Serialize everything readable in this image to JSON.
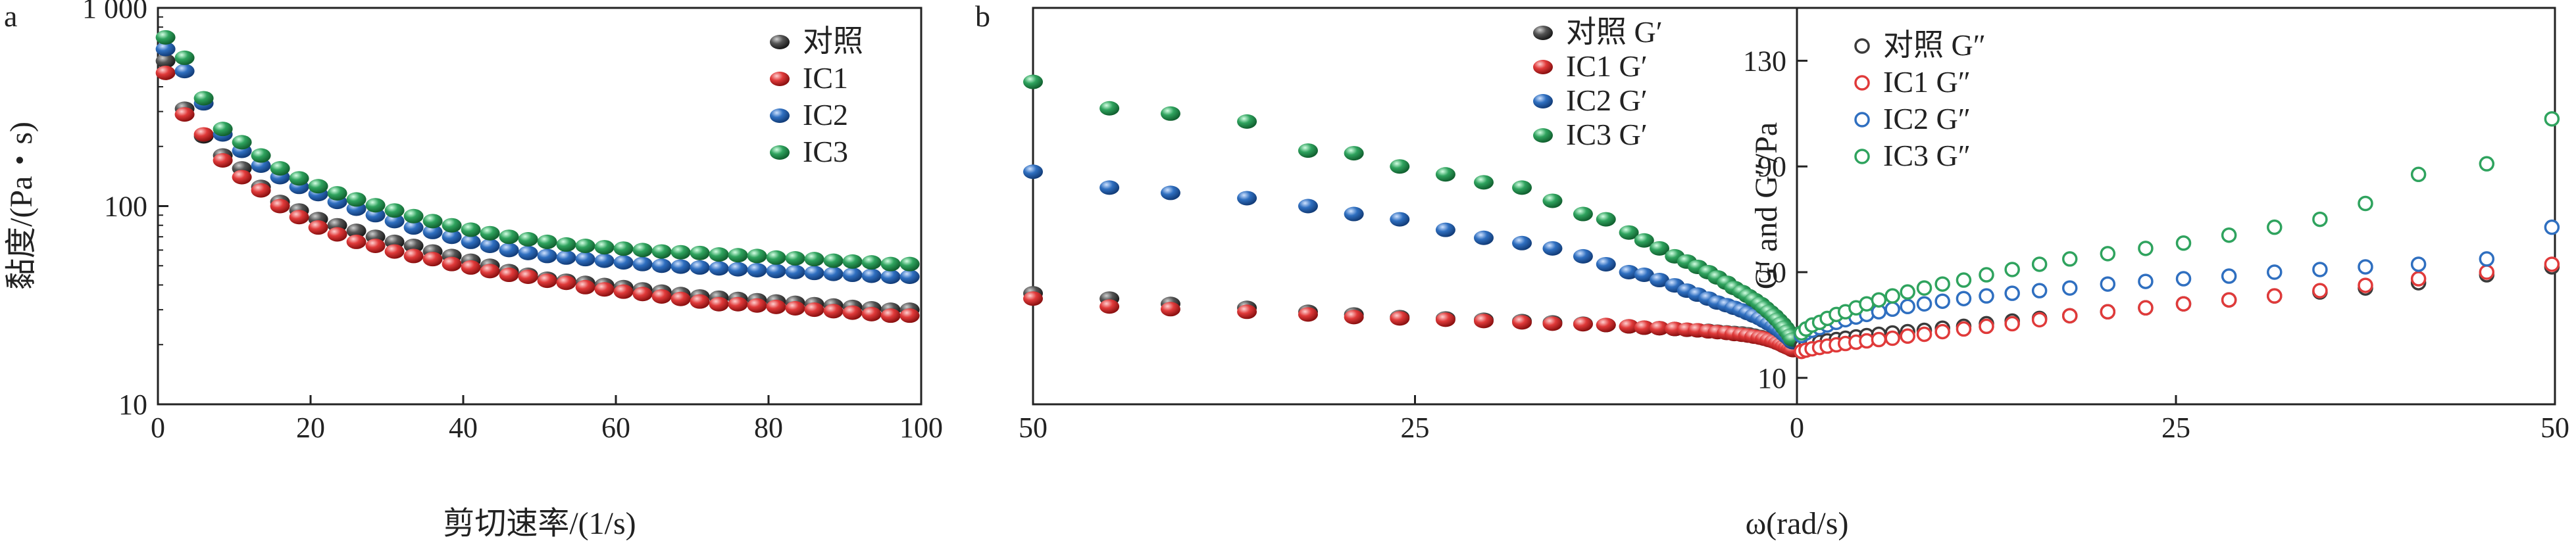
{
  "colors": {
    "control": "#3a3a3a",
    "IC1": "#e03a3a",
    "IC2": "#2f6fc0",
    "IC3": "#2fa35e"
  },
  "chart_data": [
    {
      "panel": "a",
      "type": "scatter",
      "xlabel": "剪切速率/(1/s)",
      "ylabel": "黏度/(Pa・s)",
      "xlim": [
        0,
        100
      ],
      "ylim": [
        10,
        1000
      ],
      "yscale": "log",
      "xticks": [
        0,
        20,
        40,
        60,
        80,
        100
      ],
      "yticks": [
        10,
        100,
        1000
      ],
      "ytick_labels": [
        "10",
        "100",
        "1 000"
      ],
      "legend": "top-right",
      "marker": "filled",
      "x": [
        1,
        3.5,
        6,
        8.5,
        11,
        13.5,
        16,
        18.5,
        21,
        23.5,
        26,
        28.5,
        31,
        33.5,
        36,
        38.5,
        41,
        43.5,
        46,
        48.5,
        51,
        53.5,
        56,
        58.5,
        61,
        63.5,
        66,
        68.5,
        71,
        73.5,
        76,
        78.5,
        81,
        83.5,
        86,
        88.5,
        91,
        93.5,
        96,
        98.5
      ],
      "series": [
        {
          "name": "对照",
          "color_key": "control",
          "values": [
            540,
            310,
            225,
            180,
            155,
            125,
            105,
            95,
            86,
            80,
            75,
            70,
            66,
            63,
            59,
            56,
            53,
            50,
            47,
            45,
            43,
            42,
            41,
            40,
            39,
            38,
            37,
            36,
            35,
            34.5,
            34,
            33.5,
            33,
            32.5,
            32,
            31.5,
            31,
            30.5,
            30,
            30
          ]
        },
        {
          "name": "IC1",
          "color_key": "IC1",
          "values": [
            470,
            290,
            230,
            170,
            140,
            120,
            100,
            88,
            78,
            72,
            66,
            63,
            59,
            56,
            54,
            51,
            49,
            47,
            45,
            44,
            42,
            41,
            39,
            38,
            37,
            36,
            35,
            34,
            33,
            32,
            32,
            31.5,
            31,
            30.5,
            30,
            29.5,
            29,
            28.5,
            28,
            28
          ]
        },
        {
          "name": "IC2",
          "color_key": "IC2",
          "values": [
            620,
            480,
            330,
            230,
            190,
            160,
            140,
            125,
            115,
            105,
            97,
            90,
            84,
            78,
            74,
            70,
            66,
            63,
            60,
            58,
            56,
            55,
            54,
            53,
            52,
            51,
            50,
            49.5,
            49,
            48.5,
            48,
            47.5,
            47,
            46.5,
            46,
            45.5,
            45,
            44.5,
            44,
            44
          ]
        },
        {
          "name": "IC3",
          "color_key": "IC3",
          "values": [
            710,
            560,
            350,
            245,
            210,
            180,
            155,
            138,
            126,
            116,
            108,
            101,
            95,
            89,
            84,
            80,
            76,
            73,
            70,
            68,
            66,
            64,
            63,
            62,
            61,
            60,
            59,
            58.5,
            58,
            57,
            56.5,
            56,
            55,
            54.5,
            54,
            53,
            52.5,
            52,
            51,
            51
          ]
        }
      ]
    },
    {
      "panel": "b",
      "type": "scatter",
      "xlabel": "ω(rad/s)",
      "ylabel": "G′ and G″/Pa",
      "xlim": [
        0,
        50
      ],
      "ylim": [
        0,
        150
      ],
      "xticks": [
        50,
        25,
        0,
        25,
        50
      ],
      "yticks": [
        10,
        50,
        90,
        130
      ],
      "note": "mirrored x-axis: G′ plotted to the left of ω=0, G″ to the right",
      "left": {
        "marker": "filled",
        "x": [
          50,
          45,
          41,
          36,
          32,
          29,
          26,
          23,
          20.5,
          18,
          16,
          14,
          12.5,
          11,
          10,
          9,
          8,
          7.2,
          6.5,
          5.8,
          5.2,
          4.6,
          4.1,
          3.6,
          3.2,
          2.8,
          2.4,
          2.1,
          1.8,
          1.5,
          1.25,
          1,
          0.8,
          0.6,
          0.4,
          0.25
        ],
        "series": [
          {
            "name": "对照 G′",
            "color_key": "control",
            "values": [
              42,
              40,
              38,
              36.5,
              35,
              34,
              33,
              32.5,
              32,
              31.5,
              31,
              30.5,
              30,
              29.5,
              29,
              28.8,
              28.5,
              28.2,
              28,
              27.8,
              27.5,
              27.2,
              27,
              26.8,
              26.5,
              26,
              25.5,
              25,
              24.5,
              24,
              23.5,
              23,
              22.5,
              22,
              21.5,
              21
            ]
          },
          {
            "name": "IC1 G′",
            "color_key": "IC1",
            "values": [
              40,
              37,
              36,
              35,
              34,
              33,
              32.5,
              32,
              31.5,
              31,
              30.5,
              30.3,
              30,
              29.5,
              29,
              28.8,
              28.5,
              28.2,
              28,
              27.6,
              27.3,
              27,
              26.6,
              26.3,
              26,
              25.6,
              25.2,
              24.8,
              24.3,
              23.8,
              23.2,
              22.6,
              22,
              21.5,
              21,
              20.5
            ]
          },
          {
            "name": "IC2 G′",
            "color_key": "IC2",
            "values": [
              88,
              82,
              80,
              78,
              75,
              72,
              70,
              66,
              63,
              61,
              59,
              56,
              53,
              50,
              49,
              47,
              45,
              43,
              41.5,
              40,
              38.5,
              37.5,
              36.5,
              35.5,
              34.5,
              33.5,
              32.5,
              31.5,
              30.5,
              29.5,
              28.5,
              27.5,
              26.5,
              25.5,
              24.5,
              23.5
            ]
          },
          {
            "name": "IC3 G′",
            "color_key": "IC3",
            "values": [
              122,
              112,
              110,
              107,
              96,
              95,
              90,
              87,
              84,
              82,
              77,
              72,
              70,
              65,
              62,
              59,
              56,
              54,
              52,
              50,
              48,
              46,
              44,
              42.5,
              41,
              39.5,
              38,
              36.5,
              35,
              33.5,
              32,
              30.5,
              29,
              27.5,
              26,
              24.5
            ]
          }
        ]
      },
      "right": {
        "marker": "hollow",
        "x": [
          0.3,
          0.6,
          1,
          1.5,
          2,
          2.6,
          3.2,
          3.9,
          4.6,
          5.4,
          6.3,
          7.3,
          8.4,
          9.6,
          11,
          12.5,
          14.2,
          16,
          18,
          20.5,
          23,
          25.5,
          28.5,
          31.5,
          34.5,
          37.5,
          41,
          45.5,
          49.8
        ],
        "series": [
          {
            "name": "对照 G″",
            "color_key": "control",
            "values": [
              22,
              22.5,
              23,
              23.5,
              24,
              24.5,
              25,
              25.5,
              26,
              26.5,
              27,
              27.5,
              28,
              28.8,
              29.5,
              30.5,
              31.5,
              32.5,
              33.5,
              35,
              36.5,
              38,
              39.5,
              41,
              42.5,
              44,
              46,
              49,
              52
            ]
          },
          {
            "name": "IC1 G″",
            "color_key": "IC1",
            "values": [
              20,
              20.5,
              21,
              21.5,
              22,
              22.5,
              23,
              23.5,
              24,
              24.5,
              25,
              25.8,
              26.5,
              27.5,
              28.5,
              29.5,
              30.5,
              32,
              33.5,
              35,
              36.5,
              38,
              39.5,
              41,
              43,
              45,
              47.5,
              50,
              53
            ]
          },
          {
            "name": "IC2 G″",
            "color_key": "IC2",
            "values": [
              26,
              27,
              28,
              29,
              30,
              31,
              32,
              33,
              34,
              35,
              36,
              37,
              38,
              39,
              40,
              41,
              42,
              43,
              44,
              45.5,
              46.5,
              47.5,
              48.5,
              50,
              51,
              52,
              53,
              55,
              67
            ]
          },
          {
            "name": "IC3 G″",
            "color_key": "IC3",
            "values": [
              27,
              28.5,
              30,
              31,
              32.5,
              34,
              35,
              36.5,
              38,
              39.5,
              41,
              42.5,
              44,
              45.5,
              47,
              49,
              51,
              53,
              55,
              57,
              59,
              61,
              64,
              67,
              70,
              76,
              87,
              91,
              108
            ]
          }
        ]
      }
    }
  ]
}
